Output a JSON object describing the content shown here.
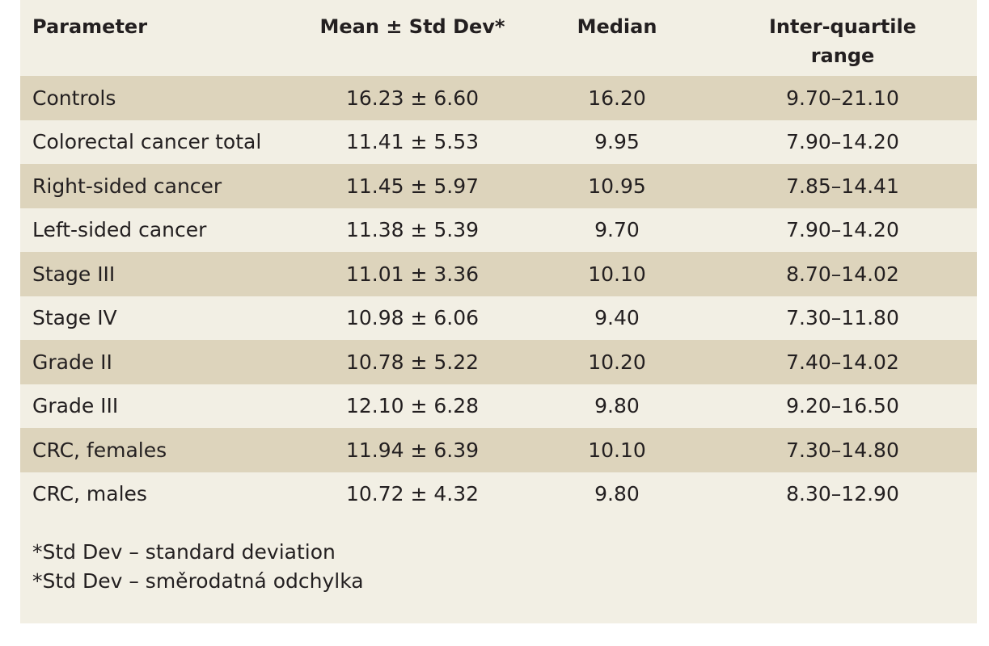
{
  "table": {
    "headers": {
      "parameter": "Parameter",
      "mean": "Mean ± Std Dev*",
      "median": "Median",
      "iqr_line1": "Inter-quartile",
      "iqr_line2": "range"
    },
    "rows": [
      {
        "parameter": "Controls",
        "mean": "16.23 ± 6.60",
        "median": "16.20",
        "iqr": "9.70–21.10"
      },
      {
        "parameter": "Colorectal cancer total",
        "mean": "11.41 ± 5.53",
        "median": "9.95",
        "iqr": "7.90–14.20"
      },
      {
        "parameter": "Right-sided cancer",
        "mean": "11.45 ± 5.97",
        "median": "10.95",
        "iqr": "7.85–14.41"
      },
      {
        "parameter": "Left-sided cancer",
        "mean": "11.38 ± 5.39",
        "median": "9.70",
        "iqr": "7.90–14.20"
      },
      {
        "parameter": "Stage III",
        "mean": "11.01 ± 3.36",
        "median": "10.10",
        "iqr": "8.70–14.02"
      },
      {
        "parameter": "Stage IV",
        "mean": "10.98 ± 6.06",
        "median": "9.40",
        "iqr": "7.30–11.80"
      },
      {
        "parameter": "Grade II",
        "mean": "10.78 ± 5.22",
        "median": "10.20",
        "iqr": "7.40–14.02"
      },
      {
        "parameter": "Grade III",
        "mean": "12.10 ± 6.28",
        "median": "9.80",
        "iqr": "9.20–16.50"
      },
      {
        "parameter": "CRC, females",
        "mean": "11.94 ± 6.39",
        "median": "10.10",
        "iqr": "7.30–14.80"
      },
      {
        "parameter": "CRC, males",
        "mean": "10.72 ± 4.32",
        "median": "9.80",
        "iqr": "8.30–12.90"
      }
    ]
  },
  "footnotes": [
    "*Std Dev – standard deviation",
    "*Std Dev – směrodatná odchylka"
  ],
  "colors": {
    "background": "#f2efe4",
    "row_shade": "#ddd4bc",
    "text": "#231f20"
  }
}
